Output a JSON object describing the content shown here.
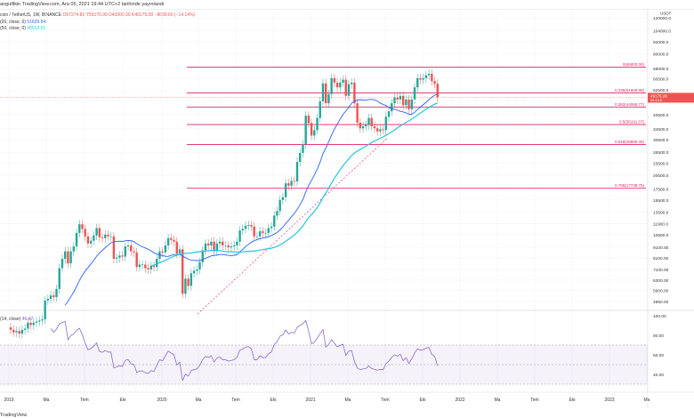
{
  "header": {
    "text": "angulfikin TradingView.com, Ara 05, 2021 19:44 UTC+2 tarihinde yayınlandı"
  },
  "legend": {
    "symbol": "coin / TetherUS, 1W, BINANCE",
    "open": "O57274.89",
    "high": "Y59176.99",
    "low": "D42000.30",
    "close": "K49175.28",
    "change": "−8099.60 (−14.14%)",
    "ma20_label": "(20, close, 0)",
    "ma20_value": "51629.54",
    "ma50_label": "(50, close, 0)",
    "ma50_value": "46913.01",
    "rsi_label": "(14, close)",
    "rsi_value": "46.47"
  },
  "price_tag": {
    "price": "49175.28",
    "countdown": "06:15:0"
  },
  "footer": {
    "text": "TradingView"
  },
  "colors": {
    "up": "#26a69a",
    "down": "#ef5350",
    "ma20": "#2962ff",
    "ma50": "#26c6da",
    "fib": "#e91e63",
    "rsi": "#7e57c2"
  },
  "chart_data": {
    "type": "candlestick",
    "interval": "1W",
    "start": "2019-01",
    "closes": [
      3600,
      3500,
      3550,
      3450,
      3600,
      3650,
      3900,
      3800,
      3900,
      3950,
      4000,
      4050,
      5000,
      5100,
      5300,
      5200,
      5700,
      7200,
      8000,
      8700,
      7600,
      8700,
      9200,
      10700,
      11800,
      11200,
      10300,
      9500,
      9800,
      10400,
      11300,
      10200,
      10100,
      10500,
      10300,
      10300,
      8000,
      8100,
      8300,
      8200,
      9200,
      9300,
      8700,
      8600,
      7300,
      7500,
      7500,
      7200,
      7100,
      7400,
      7300,
      8000,
      8700,
      8600,
      9300,
      10100,
      9900,
      9700,
      8500,
      8900,
      5400,
      6400,
      5900,
      6800,
      7000,
      7100,
      7700,
      8800,
      9500,
      9300,
      9700,
      8700,
      9500,
      9700,
      9300,
      9300,
      9100,
      9200,
      9300,
      9700,
      11000,
      11200,
      11600,
      11700,
      11500,
      10300,
      10300,
      10900,
      10700,
      10700,
      11300,
      11500,
      13000,
      13700,
      15500,
      16000,
      18700,
      18200,
      19200,
      19100,
      23800,
      26300,
      29000,
      40000,
      36800,
      32000,
      34000,
      39000,
      47000,
      57500,
      46000,
      51000,
      61000,
      58000,
      55000,
      58000,
      60000,
      50000,
      57000,
      58000,
      46000,
      37000,
      34700,
      35500,
      36000,
      39000,
      35500,
      34700,
      33500,
      34300,
      34000,
      39500,
      42000,
      46000,
      49000,
      48000,
      50000,
      45000,
      48000,
      43000,
      48000,
      55000,
      61000,
      60000,
      61000,
      63000,
      64000,
      59000,
      57274.89,
      49175.28
    ],
    "price_axis": [
      "120000.0",
      "104000.0",
      "92000.0",
      "80000.0",
      "68000.0",
      "60500.0",
      "52500.0",
      "40500.0",
      "34500.0",
      "30500.0",
      "26500.0",
      "23500.0",
      "20500.0",
      "17500.0",
      "15500.0",
      "13500.0",
      "11900.0",
      "10500.0",
      "9100.00",
      "8100.00",
      "7100.00",
      "6300.00",
      "5600.00",
      "4950.00"
    ],
    "price_axis_values": [
      120000,
      104000,
      92000,
      80000,
      68000,
      60500,
      52500,
      40500,
      34500,
      30500,
      26500,
      23500,
      20500,
      17500,
      15500,
      13500,
      11900,
      10500,
      9100,
      8100,
      7100,
      6300,
      5600,
      4950
    ],
    "axis_currency": "USDT",
    "rsi_axis": [
      "100.00",
      "80.00",
      "60.00",
      "40.00"
    ],
    "time_axis": [
      "2019",
      "Ma",
      "Tem",
      "Eki",
      "2020",
      "Ma",
      "Tem",
      "Eki",
      "2021",
      "Ma",
      "Tem",
      "Eki",
      "2022",
      "Ma",
      "Tem",
      "Eki",
      "2023",
      "Ma"
    ],
    "fib_levels": [
      {
        "label": "0(69000.00)",
        "price": 69000
      },
      {
        "label": "0.236(51608.98)",
        "price": 51608.98
      },
      {
        "label": "0.382(44086.77)",
        "price": 44086.77
      },
      {
        "label": "0.5(36191.07)",
        "price": 36191.07
      },
      {
        "label": "0.618(28895.36)",
        "price": 28895.36
      },
      {
        "label": "0.786(17738.75)",
        "price": 17738.75
      }
    ]
  }
}
